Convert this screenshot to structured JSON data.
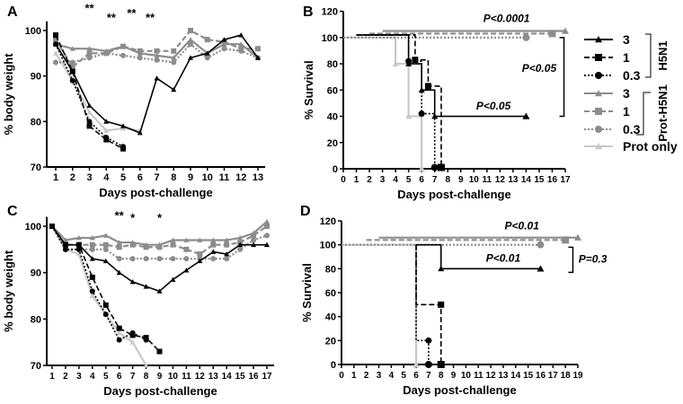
{
  "colors": {
    "h5n1": "#000000",
    "prot": "#8c8c8c",
    "prot_only": "#c8c8c8"
  },
  "legend": {
    "entries": [
      {
        "label": "3",
        "group": "h5n1",
        "dash": "solid",
        "marker": "triangle"
      },
      {
        "label": "1",
        "group": "h5n1",
        "dash": "dashed",
        "marker": "square"
      },
      {
        "label": "0.3",
        "group": "h5n1",
        "dash": "dotted",
        "marker": "circle"
      },
      {
        "label": "3",
        "group": "prot",
        "dash": "solid",
        "marker": "triangle"
      },
      {
        "label": "1",
        "group": "prot",
        "dash": "dashed",
        "marker": "square"
      },
      {
        "label": "0.3",
        "group": "prot",
        "dash": "dotted",
        "marker": "circle"
      },
      {
        "label": "Prot only",
        "group": "prot_only",
        "dash": "solid",
        "marker": "triangle"
      }
    ],
    "group_h5n1": "H5N1",
    "group_prot": "Prot-H5N1"
  },
  "chart_data": [
    {
      "id": "A",
      "panel_label": "A",
      "type": "line",
      "xlabel": "Days post-challenge",
      "ylabel": "% body weight",
      "xlim": [
        1,
        13
      ],
      "ylim": [
        70,
        100
      ],
      "xticks": [
        1,
        2,
        3,
        4,
        5,
        6,
        7,
        8,
        9,
        10,
        11,
        12,
        13
      ],
      "yticks": [
        70,
        80,
        90,
        100
      ],
      "annotations": [
        {
          "text": "**",
          "x": 3,
          "y": 104
        },
        {
          "text": "**",
          "x": 4.3,
          "y": 102
        },
        {
          "text": "**",
          "x": 5.5,
          "y": 103
        },
        {
          "text": "**",
          "x": 6.6,
          "y": 102
        }
      ],
      "series": [
        {
          "name": "H5N1 3",
          "style": 0,
          "x": [
            1,
            2,
            3,
            4,
            5,
            6,
            7,
            8,
            9,
            10,
            11,
            12,
            13
          ],
          "y": [
            97,
            91,
            83.5,
            80,
            79,
            77.5,
            89.5,
            87,
            94,
            95,
            98,
            99,
            94
          ]
        },
        {
          "name": "H5N1 1",
          "style": 1,
          "x": [
            1,
            2,
            3,
            4,
            5
          ],
          "y": [
            99,
            91,
            79,
            76,
            74
          ]
        },
        {
          "name": "H5N1 0.3",
          "style": 2,
          "x": [
            1,
            2,
            3,
            4,
            5
          ],
          "y": [
            97,
            89,
            80,
            76.5,
            74.5
          ]
        },
        {
          "name": "Prot-H5N1 3",
          "style": 3,
          "x": [
            1,
            2,
            3,
            4,
            5,
            6,
            7,
            8,
            9,
            10,
            11,
            12,
            13
          ],
          "y": [
            97,
            96,
            96,
            95.5,
            96.5,
            95,
            94.5,
            94,
            98,
            95,
            97,
            97,
            94
          ]
        },
        {
          "name": "Prot-H5N1 1",
          "style": 4,
          "x": [
            1,
            2,
            3,
            4,
            5,
            6,
            7,
            8,
            9,
            10,
            11,
            12,
            13
          ],
          "y": [
            98,
            92,
            95,
            95,
            96.5,
            95.5,
            95.5,
            95.5,
            100,
            98,
            97.5,
            96,
            96
          ]
        },
        {
          "name": "Prot-H5N1 0.3",
          "style": 5,
          "x": [
            1,
            2,
            3,
            4,
            5,
            6,
            7,
            8,
            9,
            10,
            11,
            12,
            13
          ],
          "y": [
            93,
            93,
            94,
            95,
            94.5,
            94,
            93.5,
            93,
            97,
            94,
            96,
            95.5,
            94
          ]
        },
        {
          "name": "Prot only",
          "style": 6,
          "x": [
            1,
            2,
            3,
            4,
            5,
            6
          ],
          "y": [
            95,
            89,
            82,
            78,
            78.5,
            78
          ]
        }
      ]
    },
    {
      "id": "B",
      "panel_label": "B",
      "type": "line",
      "xlabel": "Days post-challenge",
      "ylabel": "% Survival",
      "xlim": [
        0,
        17
      ],
      "ylim": [
        0,
        120
      ],
      "xticks": [
        0,
        1,
        2,
        3,
        4,
        5,
        6,
        7,
        8,
        9,
        10,
        11,
        12,
        13,
        14,
        15,
        16,
        17
      ],
      "yticks": [
        0,
        20,
        40,
        60,
        80,
        100,
        120
      ],
      "annotations": [
        {
          "text": "P<0.0001",
          "x": 12.5,
          "y": 112
        },
        {
          "text": "P<0.05",
          "x": 15,
          "y": 74
        },
        {
          "text": "P<0.05",
          "x": 11.5,
          "y": 45
        }
      ],
      "brackets": [
        {
          "x": 16.9,
          "y0": 100,
          "y1": 40
        }
      ],
      "series": [
        {
          "name": "H5N1 3",
          "style": 0,
          "step": true,
          "x": [
            1,
            5,
            5,
            6,
            6,
            7,
            7,
            14
          ],
          "y": [
            102,
            102,
            80,
            80,
            60,
            60,
            40,
            40
          ]
        },
        {
          "name": "H5N1 1",
          "style": 1,
          "step": true,
          "x": [
            1,
            5.5,
            5.5,
            6.5,
            6.5,
            7.5,
            7.5
          ],
          "y": [
            102,
            102,
            83,
            83,
            63,
            63,
            1
          ]
        },
        {
          "name": "H5N1 0.3",
          "style": 2,
          "step": true,
          "x": [
            1,
            5,
            5,
            6,
            6,
            7,
            7
          ],
          "y": [
            102,
            102,
            82,
            82,
            42,
            42,
            1
          ]
        },
        {
          "name": "Prot-H5N1 3",
          "style": 3,
          "step": true,
          "x": [
            3,
            17
          ],
          "y": [
            105,
            105
          ]
        },
        {
          "name": "Prot-H5N1 1",
          "style": 4,
          "step": true,
          "x": [
            2,
            16
          ],
          "y": [
            103,
            103
          ]
        },
        {
          "name": "Prot-H5N1 0.3",
          "style": 5,
          "step": true,
          "x": [
            0,
            14
          ],
          "y": [
            100,
            100
          ]
        },
        {
          "name": "Prot only",
          "style": 6,
          "step": true,
          "x": [
            0,
            4,
            4,
            5,
            5,
            6,
            6
          ],
          "y": [
            100,
            100,
            80,
            80,
            40,
            40,
            0
          ]
        }
      ]
    },
    {
      "id": "C",
      "panel_label": "C",
      "type": "line",
      "xlabel": "Days post-challenge",
      "ylabel": "% body weight",
      "xlim": [
        1,
        17
      ],
      "ylim": [
        70,
        100
      ],
      "xticks": [
        1,
        2,
        3,
        4,
        5,
        6,
        7,
        8,
        9,
        10,
        11,
        12,
        13,
        14,
        15,
        16,
        17
      ],
      "yticks": [
        70,
        80,
        90,
        100
      ],
      "annotations": [
        {
          "text": "**",
          "x": 6,
          "y": 101.5
        },
        {
          "text": "*",
          "x": 7,
          "y": 101
        },
        {
          "text": "*",
          "x": 9,
          "y": 101
        }
      ],
      "series": [
        {
          "name": "H5N1 3",
          "style": 0,
          "x": [
            1,
            2,
            3,
            4,
            5,
            6,
            7,
            8,
            9,
            10,
            11,
            12,
            13,
            14,
            15,
            16,
            17
          ],
          "y": [
            100,
            96,
            96,
            93,
            92.5,
            90,
            88,
            87,
            86,
            88.5,
            90.5,
            92.5,
            94.5,
            94,
            96,
            96,
            96
          ]
        },
        {
          "name": "H5N1 1",
          "style": 1,
          "x": [
            1,
            2,
            3,
            4,
            5,
            6,
            7,
            8,
            9
          ],
          "y": [
            100,
            96,
            96,
            89,
            83,
            78,
            76.5,
            76,
            73
          ]
        },
        {
          "name": "H5N1 0.3",
          "style": 2,
          "x": [
            1,
            2,
            3,
            4,
            5,
            6,
            7,
            8
          ],
          "y": [
            100,
            95,
            95,
            86,
            81,
            75.5,
            77,
            75.5
          ]
        },
        {
          "name": "Prot-H5N1 3",
          "style": 3,
          "x": [
            1,
            2,
            3,
            4,
            5,
            6,
            7,
            8,
            9,
            10,
            11,
            12,
            13,
            14,
            15,
            16,
            17
          ],
          "y": [
            100,
            97,
            97.5,
            97.5,
            98,
            96.5,
            96.5,
            96,
            96,
            97,
            97,
            97,
            97,
            97,
            97.5,
            98.5,
            101
          ]
        },
        {
          "name": "Prot-H5N1 1",
          "style": 4,
          "x": [
            1,
            2,
            3,
            4,
            5,
            6,
            7,
            8,
            9,
            10,
            11,
            12,
            13,
            14,
            15,
            16,
            17
          ],
          "y": [
            100,
            96,
            96,
            96,
            96,
            95.5,
            96,
            95.5,
            95.5,
            96,
            95,
            94,
            96,
            96,
            96.5,
            98,
            100
          ]
        },
        {
          "name": "Prot-H5N1 0.3",
          "style": 5,
          "x": [
            1,
            2,
            3,
            4,
            5,
            6,
            7,
            8,
            9,
            10,
            11,
            12,
            13,
            14,
            15,
            16,
            17
          ],
          "y": [
            100,
            95,
            95,
            95,
            95,
            93,
            93,
            93,
            93,
            93,
            93,
            93,
            93,
            93,
            95,
            97,
            98
          ]
        },
        {
          "name": "Prot only",
          "style": 6,
          "x": [
            1,
            2,
            3,
            4,
            5,
            6,
            7,
            8
          ],
          "y": [
            100,
            95,
            94,
            85,
            81,
            77,
            75,
            70
          ]
        }
      ]
    },
    {
      "id": "D",
      "panel_label": "D",
      "type": "line",
      "xlabel": "Days post-challenge",
      "ylabel": "% Survival",
      "xlim": [
        0,
        19
      ],
      "ylim": [
        0,
        120
      ],
      "xticks": [
        0,
        1,
        2,
        3,
        4,
        5,
        6,
        7,
        8,
        9,
        10,
        11,
        12,
        13,
        14,
        15,
        16,
        17,
        18,
        19
      ],
      "yticks": [
        0,
        20,
        40,
        60,
        80,
        100,
        120
      ],
      "annotations": [
        {
          "text": "P<0.01",
          "x": 14.5,
          "y": 113
        },
        {
          "text": "P<0.01",
          "x": 13,
          "y": 86
        },
        {
          "text": "P=0.3",
          "x": 20.2,
          "y": 85
        }
      ],
      "brackets": [
        {
          "x": 18.6,
          "y0": 98,
          "y1": 77
        }
      ],
      "series": [
        {
          "name": "H5N1 3",
          "style": 0,
          "step": true,
          "x": [
            6,
            8,
            8,
            16
          ],
          "y": [
            100,
            100,
            80,
            80
          ]
        },
        {
          "name": "H5N1 1",
          "style": 1,
          "step": true,
          "x": [
            6,
            6,
            8,
            8
          ],
          "y": [
            100,
            50,
            50,
            0
          ]
        },
        {
          "name": "H5N1 0.3",
          "style": 2,
          "step": true,
          "x": [
            6,
            6,
            7,
            7
          ],
          "y": [
            100,
            20,
            20,
            0
          ]
        },
        {
          "name": "Prot-H5N1 3",
          "style": 3,
          "step": true,
          "x": [
            3,
            19
          ],
          "y": [
            106,
            106
          ]
        },
        {
          "name": "Prot-H5N1 1",
          "style": 4,
          "step": true,
          "x": [
            2,
            18
          ],
          "y": [
            104,
            104
          ]
        },
        {
          "name": "Prot-H5N1 0.3",
          "style": 5,
          "step": true,
          "x": [
            0,
            16
          ],
          "y": [
            100,
            100
          ]
        },
        {
          "name": "Prot only",
          "style": 6,
          "step": true,
          "x": [
            0,
            6,
            6
          ],
          "y": [
            100,
            100,
            0
          ]
        }
      ]
    }
  ]
}
